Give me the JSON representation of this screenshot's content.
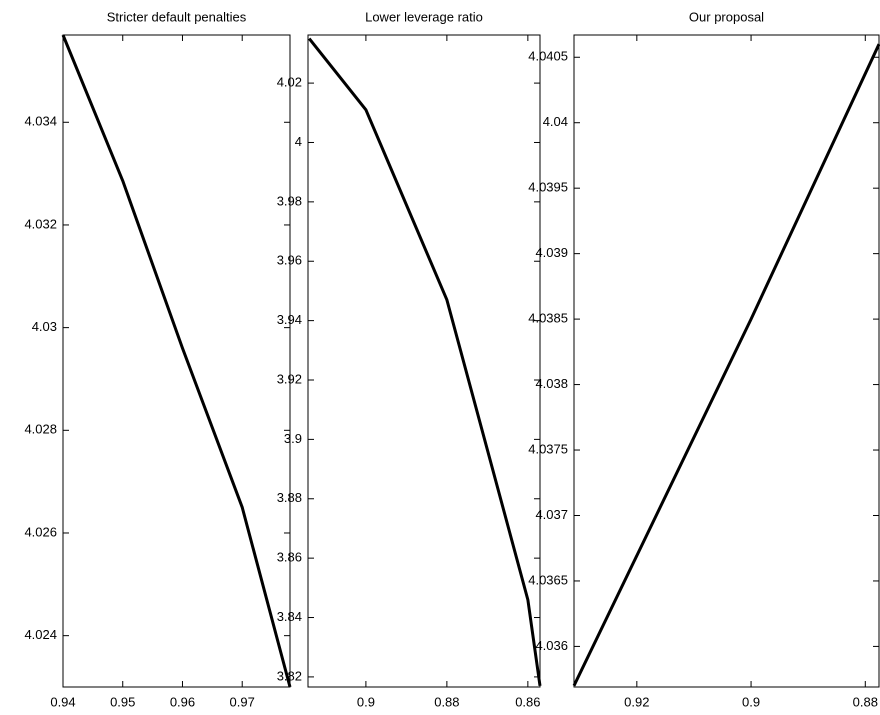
{
  "chart_data": [
    {
      "type": "line",
      "title": "Stricter default penalties",
      "x": [
        0.94,
        0.95,
        0.96,
        0.97,
        0.978
      ],
      "values": [
        4.0357,
        4.03286,
        4.0296,
        4.0265,
        4.023
      ],
      "color": "#000000",
      "xlim": [
        0.94,
        0.978
      ],
      "ylim": [
        4.023,
        4.0357
      ],
      "xticks": [
        0.94,
        0.95,
        0.96,
        0.97
      ],
      "yticks": [
        4.024,
        4.026,
        4.028,
        4.03,
        4.032,
        4.034
      ]
    },
    {
      "type": "line",
      "title": "Lower leverage ratio",
      "x": [
        0.914,
        0.9,
        0.88,
        0.86,
        0.857
      ],
      "values": [
        4.035,
        4.011,
        3.947,
        3.846,
        3.817
      ],
      "color": "#000000",
      "xlim": [
        0.9143,
        0.857
      ],
      "ylim": [
        3.8166,
        4.0362
      ],
      "xticks": [
        0.9,
        0.88,
        0.86
      ],
      "yticks": [
        3.82,
        3.84,
        3.86,
        3.88,
        3.9,
        3.92,
        3.94,
        3.96,
        3.98,
        4,
        4.02
      ]
    },
    {
      "type": "line",
      "title": "Our proposal",
      "x": [
        0.931,
        0.9,
        0.8776
      ],
      "values": [
        4.0357,
        4.0385,
        4.0406
      ],
      "color": "#000000",
      "xlim": [
        0.931,
        0.8776
      ],
      "ylim": [
        4.03569,
        4.04067
      ],
      "xticks": [
        0.92,
        0.9,
        0.88
      ],
      "yticks": [
        4.036,
        4.0365,
        4.037,
        4.0375,
        4.038,
        4.0385,
        4.039,
        4.0395,
        4.04,
        4.0405
      ]
    }
  ]
}
